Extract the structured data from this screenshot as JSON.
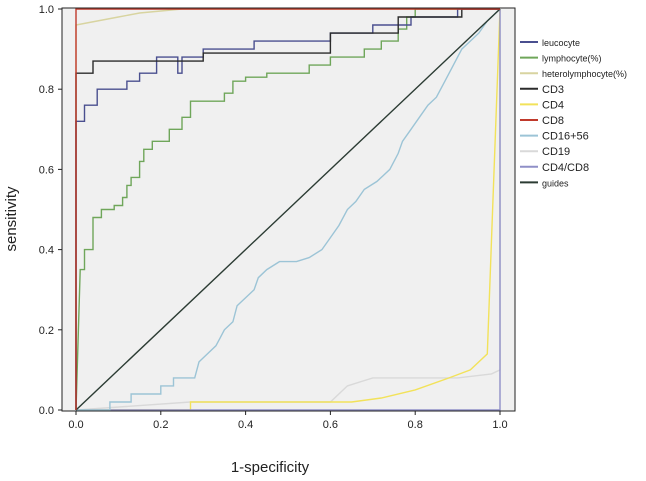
{
  "chart_data": {
    "type": "line",
    "title": "",
    "xlabel": "1-specificity",
    "ylabel": "sensitivity",
    "xlim": [
      0,
      1
    ],
    "ylim": [
      0,
      1
    ],
    "xticks": [
      "0.0",
      "0.2",
      "0.4",
      "0.6",
      "0.8",
      "1.0"
    ],
    "yticks": [
      "0.0",
      "0.2",
      "0.4",
      "0.6",
      "0.8",
      "1.0"
    ],
    "legend_position": "right",
    "series": [
      {
        "name": "leucocyte",
        "color": "#4a4f8f",
        "points": [
          [
            0,
            0
          ],
          [
            0,
            0.72
          ],
          [
            0.02,
            0.72
          ],
          [
            0.02,
            0.76
          ],
          [
            0.05,
            0.76
          ],
          [
            0.05,
            0.8
          ],
          [
            0.12,
            0.8
          ],
          [
            0.12,
            0.82
          ],
          [
            0.15,
            0.82
          ],
          [
            0.15,
            0.84
          ],
          [
            0.19,
            0.84
          ],
          [
            0.19,
            0.88
          ],
          [
            0.24,
            0.88
          ],
          [
            0.24,
            0.84
          ],
          [
            0.25,
            0.84
          ],
          [
            0.25,
            0.88
          ],
          [
            0.3,
            0.88
          ],
          [
            0.3,
            0.9
          ],
          [
            0.42,
            0.9
          ],
          [
            0.42,
            0.92
          ],
          [
            0.6,
            0.92
          ],
          [
            0.6,
            0.94
          ],
          [
            0.7,
            0.94
          ],
          [
            0.7,
            0.96
          ],
          [
            0.79,
            0.96
          ],
          [
            0.79,
            0.98
          ],
          [
            0.9,
            0.98
          ],
          [
            0.9,
            1.0
          ],
          [
            1.0,
            1.0
          ]
        ]
      },
      {
        "name": "lymphocyte(%)",
        "color": "#6fa65a",
        "points": [
          [
            0,
            0
          ],
          [
            0.01,
            0.35
          ],
          [
            0.02,
            0.35
          ],
          [
            0.02,
            0.4
          ],
          [
            0.04,
            0.4
          ],
          [
            0.04,
            0.48
          ],
          [
            0.06,
            0.48
          ],
          [
            0.06,
            0.5
          ],
          [
            0.09,
            0.5
          ],
          [
            0.09,
            0.51
          ],
          [
            0.11,
            0.51
          ],
          [
            0.11,
            0.53
          ],
          [
            0.12,
            0.53
          ],
          [
            0.12,
            0.56
          ],
          [
            0.13,
            0.56
          ],
          [
            0.13,
            0.58
          ],
          [
            0.15,
            0.58
          ],
          [
            0.15,
            0.62
          ],
          [
            0.16,
            0.62
          ],
          [
            0.16,
            0.65
          ],
          [
            0.18,
            0.65
          ],
          [
            0.18,
            0.67
          ],
          [
            0.22,
            0.67
          ],
          [
            0.22,
            0.7
          ],
          [
            0.25,
            0.7
          ],
          [
            0.25,
            0.73
          ],
          [
            0.27,
            0.73
          ],
          [
            0.27,
            0.77
          ],
          [
            0.31,
            0.77
          ],
          [
            0.33,
            0.77
          ],
          [
            0.35,
            0.77
          ],
          [
            0.35,
            0.79
          ],
          [
            0.37,
            0.79
          ],
          [
            0.37,
            0.82
          ],
          [
            0.4,
            0.82
          ],
          [
            0.4,
            0.83
          ],
          [
            0.45,
            0.83
          ],
          [
            0.45,
            0.84
          ],
          [
            0.55,
            0.84
          ],
          [
            0.55,
            0.86
          ],
          [
            0.6,
            0.86
          ],
          [
            0.6,
            0.88
          ],
          [
            0.68,
            0.88
          ],
          [
            0.68,
            0.9
          ],
          [
            0.72,
            0.9
          ],
          [
            0.72,
            0.92
          ],
          [
            0.76,
            0.92
          ],
          [
            0.76,
            0.95
          ],
          [
            0.78,
            0.95
          ],
          [
            0.78,
            0.98
          ],
          [
            0.8,
            0.98
          ],
          [
            0.8,
            1.0
          ],
          [
            1.0,
            1.0
          ]
        ]
      },
      {
        "name": "heterolymphocyte(%)",
        "color": "#d8d4a0",
        "points": [
          [
            0,
            0
          ],
          [
            0,
            0.96
          ],
          [
            0.05,
            0.97
          ],
          [
            0.1,
            0.98
          ],
          [
            0.15,
            0.99
          ],
          [
            0.25,
            1.0
          ],
          [
            1.0,
            1.0
          ]
        ]
      },
      {
        "name": "CD3",
        "color": "#2b2b2b",
        "points": [
          [
            0,
            0
          ],
          [
            0,
            0.84
          ],
          [
            0.04,
            0.84
          ],
          [
            0.04,
            0.87
          ],
          [
            0.3,
            0.87
          ],
          [
            0.3,
            0.89
          ],
          [
            0.6,
            0.89
          ],
          [
            0.6,
            0.94
          ],
          [
            0.76,
            0.94
          ],
          [
            0.76,
            0.98
          ],
          [
            0.91,
            0.98
          ],
          [
            0.91,
            1.0
          ],
          [
            1.0,
            1.0
          ]
        ]
      },
      {
        "name": "CD4",
        "color": "#f2e25a",
        "points": [
          [
            0,
            0
          ],
          [
            0.27,
            0
          ],
          [
            0.27,
            0.02
          ],
          [
            0.6,
            0.02
          ],
          [
            0.65,
            0.02
          ],
          [
            0.72,
            0.03
          ],
          [
            0.8,
            0.05
          ],
          [
            0.88,
            0.08
          ],
          [
            0.93,
            0.1
          ],
          [
            0.97,
            0.14
          ],
          [
            1.0,
            1.0
          ]
        ]
      },
      {
        "name": "CD8",
        "color": "#c0392b",
        "points": [
          [
            0,
            0
          ],
          [
            0,
            1.0
          ],
          [
            1.0,
            1.0
          ]
        ]
      },
      {
        "name": "CD16+56",
        "color": "#9cc4d6",
        "points": [
          [
            0,
            0
          ],
          [
            0.08,
            0
          ],
          [
            0.08,
            0.02
          ],
          [
            0.13,
            0.02
          ],
          [
            0.13,
            0.04
          ],
          [
            0.2,
            0.04
          ],
          [
            0.2,
            0.06
          ],
          [
            0.23,
            0.06
          ],
          [
            0.23,
            0.08
          ],
          [
            0.28,
            0.08
          ],
          [
            0.29,
            0.12
          ],
          [
            0.31,
            0.14
          ],
          [
            0.33,
            0.16
          ],
          [
            0.34,
            0.18
          ],
          [
            0.35,
            0.2
          ],
          [
            0.37,
            0.22
          ],
          [
            0.38,
            0.26
          ],
          [
            0.4,
            0.28
          ],
          [
            0.42,
            0.3
          ],
          [
            0.43,
            0.33
          ],
          [
            0.45,
            0.35
          ],
          [
            0.48,
            0.37
          ],
          [
            0.52,
            0.37
          ],
          [
            0.55,
            0.38
          ],
          [
            0.58,
            0.4
          ],
          [
            0.6,
            0.43
          ],
          [
            0.62,
            0.46
          ],
          [
            0.64,
            0.5
          ],
          [
            0.66,
            0.52
          ],
          [
            0.68,
            0.55
          ],
          [
            0.71,
            0.57
          ],
          [
            0.74,
            0.6
          ],
          [
            0.76,
            0.64
          ],
          [
            0.77,
            0.67
          ],
          [
            0.79,
            0.7
          ],
          [
            0.81,
            0.73
          ],
          [
            0.83,
            0.76
          ],
          [
            0.85,
            0.78
          ],
          [
            0.87,
            0.82
          ],
          [
            0.89,
            0.86
          ],
          [
            0.91,
            0.9
          ],
          [
            0.93,
            0.92
          ],
          [
            0.95,
            0.94
          ],
          [
            0.97,
            0.97
          ],
          [
            1.0,
            1.0
          ]
        ]
      },
      {
        "name": "CD19",
        "color": "#d9d9d9",
        "points": [
          [
            0,
            0
          ],
          [
            0.27,
            0.02
          ],
          [
            0.6,
            0.02
          ],
          [
            0.64,
            0.06
          ],
          [
            0.7,
            0.08
          ],
          [
            0.9,
            0.08
          ],
          [
            0.98,
            0.09
          ],
          [
            1.0,
            0.1
          ],
          [
            1.0,
            1.0
          ]
        ]
      },
      {
        "name": "CD4/CD8",
        "color": "#8f8fc7",
        "points": [
          [
            0,
            0
          ],
          [
            1.0,
            0
          ],
          [
            1.0,
            1.0
          ]
        ]
      },
      {
        "name": "guides",
        "color": "#2b3b33",
        "points": [
          [
            0,
            0
          ],
          [
            1.0,
            1.0
          ]
        ]
      }
    ]
  }
}
